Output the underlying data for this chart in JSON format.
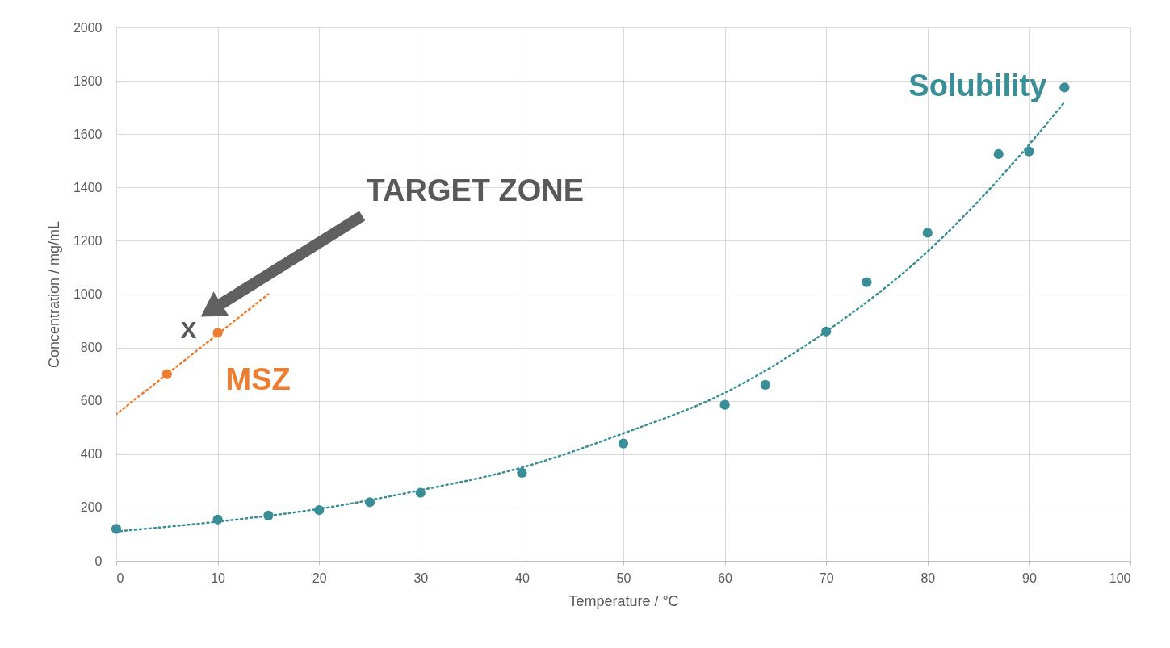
{
  "chart_data": {
    "type": "scatter",
    "xlabel": "Temperature / °C",
    "ylabel": "Concentration / mg/mL",
    "xlim": [
      0,
      100
    ],
    "xticks": [
      0,
      10,
      20,
      30,
      40,
      50,
      60,
      70,
      80,
      90,
      100
    ],
    "ylim": [
      0,
      2000
    ],
    "yticks": [
      0,
      200,
      400,
      600,
      800,
      1000,
      1200,
      1400,
      1600,
      1800,
      2000
    ],
    "grid": true,
    "legend": false,
    "marker": "circle",
    "line_style": "dotted",
    "series": [
      {
        "type": "line",
        "marker": "none",
        "color": "#3a8e97",
        "x": [
          0,
          10,
          20,
          30,
          40,
          50,
          60,
          70,
          80,
          90,
          93.5
        ],
        "values": [
          110,
          147,
          195,
          265,
          350,
          478,
          630,
          860,
          1160,
          1560,
          1720
        ]
      },
      {
        "type": "line",
        "marker": "none",
        "color": "#ed7d31",
        "x": [
          0,
          15
        ],
        "values": [
          550,
          1000
        ]
      },
      {
        "name": "Solubility",
        "color": "#3a8e97",
        "x": [
          0,
          10,
          15,
          20,
          25,
          30,
          40,
          50,
          60,
          64,
          70,
          74,
          80,
          87,
          90,
          93.5
        ],
        "values": [
          120,
          155,
          170,
          190,
          220,
          255,
          330,
          440,
          585,
          660,
          860,
          1045,
          1230,
          1525,
          1535,
          1775
        ]
      },
      {
        "name": "MSZ",
        "color": "#ed7d31",
        "x": [
          5,
          10
        ],
        "values": [
          700,
          855
        ]
      }
    ],
    "annotations": [
      "X",
      "TARGET ZONE"
    ]
  }
}
